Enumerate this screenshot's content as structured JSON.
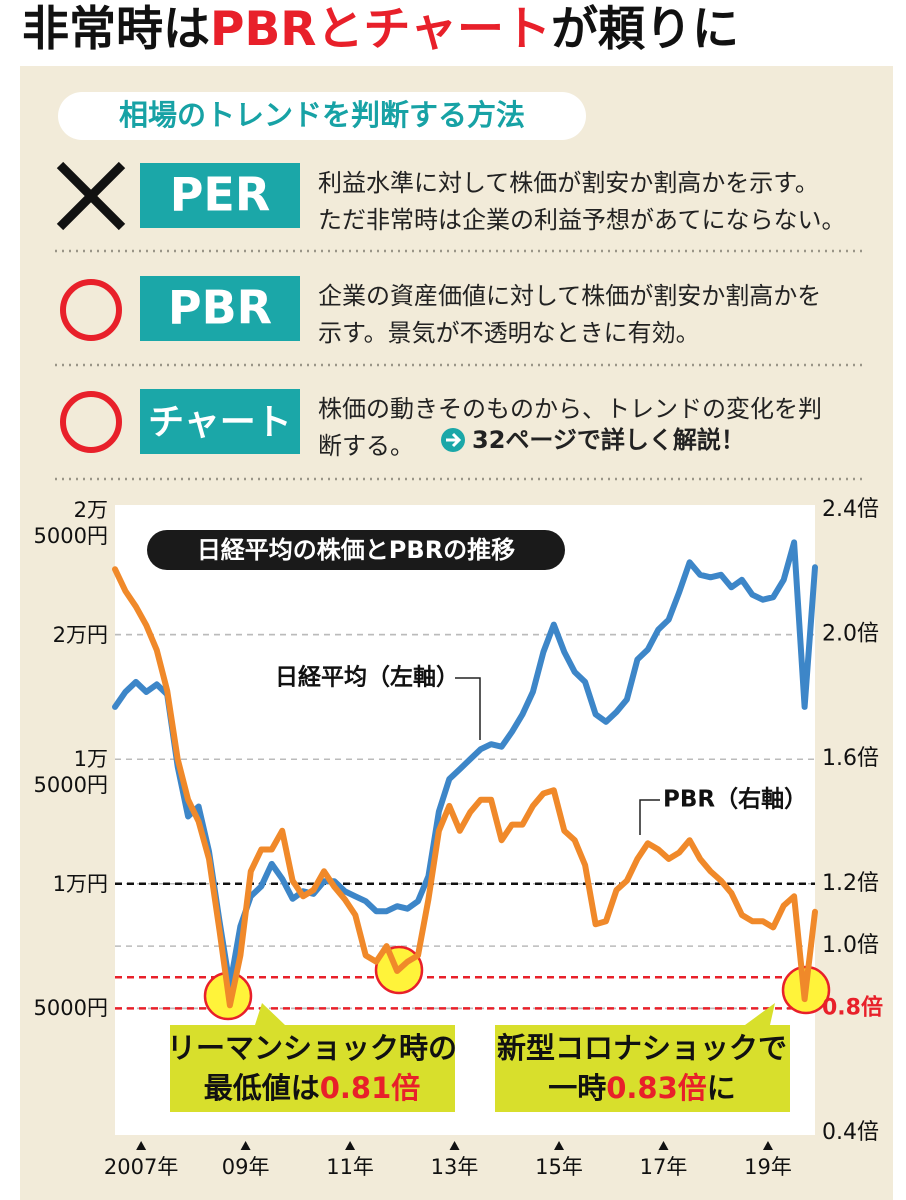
{
  "title": {
    "parts": [
      {
        "text": "非常時は",
        "color": "#111111"
      },
      {
        "text": "PBRとチャート",
        "color": "#e8202a"
      },
      {
        "text": "が頼りに",
        "color": "#111111"
      }
    ]
  },
  "methods": {
    "heading": "相場のトレンドを判断する方法",
    "items": [
      {
        "label": "PER",
        "lines": [
          "利益水準に対して株価が割安か割高かを示す。",
          "ただ非常時は企業の利益予想があてにならない。"
        ]
      },
      {
        "label": "PBR",
        "lines": [
          "企業の資産価値に対して株価が割安か割高かを",
          "示す。景気が不透明なときに有効。"
        ]
      },
      {
        "label": "チャート",
        "lines": [
          "株価の動きそのものから、トレンドの変化を判",
          "断する。"
        ],
        "link": "32ページで詳しく解説！"
      }
    ]
  },
  "chart_data": {
    "type": "line",
    "title": "日経平均の株価とPBRの推移",
    "x": [
      2006.5,
      2006.7,
      2006.9,
      2007.1,
      2007.3,
      2007.5,
      2007.7,
      2007.9,
      2008.1,
      2008.3,
      2008.5,
      2008.7,
      2008.9,
      2009.1,
      2009.3,
      2009.5,
      2009.7,
      2009.9,
      2010.1,
      2010.3,
      2010.5,
      2010.7,
      2010.9,
      2011.1,
      2011.3,
      2011.5,
      2011.7,
      2011.9,
      2012.1,
      2012.3,
      2012.5,
      2012.7,
      2012.9,
      2013.1,
      2013.3,
      2013.5,
      2013.7,
      2013.9,
      2014.1,
      2014.3,
      2014.5,
      2014.7,
      2014.9,
      2015.1,
      2015.3,
      2015.5,
      2015.7,
      2015.9,
      2016.1,
      2016.3,
      2016.5,
      2016.7,
      2016.9,
      2017.1,
      2017.3,
      2017.5,
      2017.7,
      2017.9,
      2018.1,
      2018.3,
      2018.5,
      2018.7,
      2018.9,
      2019.1,
      2019.3,
      2019.5,
      2019.7,
      2019.9
    ],
    "series": [
      {
        "name": "日経平均（左軸）",
        "color": "#3d86c8",
        "values": [
          17100,
          17700,
          18100,
          17700,
          18000,
          17600,
          14700,
          12700,
          13100,
          11300,
          8500,
          5900,
          8300,
          9500,
          9900,
          10800,
          10200,
          9400,
          9700,
          9600,
          10100,
          10100,
          9700,
          9500,
          9300,
          8900,
          8900,
          9100,
          9000,
          9300,
          10300,
          12900,
          14200,
          14600,
          15000,
          15400,
          15600,
          15500,
          16100,
          16800,
          17700,
          19300,
          20400,
          19300,
          18500,
          18100,
          16800,
          16500,
          16900,
          17400,
          19000,
          19400,
          20200,
          20600,
          21700,
          22900,
          22400,
          22300,
          22400,
          21900,
          22200,
          21600,
          21400,
          21500,
          22200,
          23700,
          17100,
          22700
        ]
      },
      {
        "name": "PBR（右軸）",
        "color": "#f0892a",
        "axis": "y2",
        "values": [
          2.21,
          2.14,
          2.09,
          2.03,
          1.95,
          1.82,
          1.6,
          1.47,
          1.4,
          1.28,
          1.05,
          0.81,
          0.97,
          1.24,
          1.31,
          1.31,
          1.37,
          1.21,
          1.16,
          1.18,
          1.24,
          1.19,
          1.15,
          1.1,
          0.97,
          0.95,
          1.0,
          0.92,
          0.95,
          0.97,
          1.15,
          1.37,
          1.45,
          1.37,
          1.43,
          1.47,
          1.47,
          1.34,
          1.39,
          1.39,
          1.45,
          1.49,
          1.5,
          1.37,
          1.34,
          1.26,
          1.07,
          1.08,
          1.18,
          1.21,
          1.28,
          1.33,
          1.31,
          1.28,
          1.3,
          1.34,
          1.28,
          1.24,
          1.21,
          1.17,
          1.1,
          1.08,
          1.08,
          1.06,
          1.13,
          1.16,
          0.83,
          1.11
        ]
      }
    ],
    "xlim": [
      2006.5,
      2019.9
    ],
    "xticks": [
      {
        "value": 2007,
        "label": "2007年"
      },
      {
        "value": 2009,
        "label": "09年"
      },
      {
        "value": 2011,
        "label": "11年"
      },
      {
        "value": 2013,
        "label": "13年"
      },
      {
        "value": 2015,
        "label": "15年"
      },
      {
        "value": 2017,
        "label": "17年"
      },
      {
        "value": 2019,
        "label": "19年"
      }
    ],
    "ylim": [
      0,
      25000
    ],
    "yticks": [
      {
        "value": 5000,
        "label": "5000円"
      },
      {
        "value": 10000,
        "label": "1万円"
      },
      {
        "value": 15000,
        "label": "1万\n5000円"
      },
      {
        "value": 20000,
        "label": "2万円"
      },
      {
        "value": 25000,
        "label": "2万\n5000円"
      }
    ],
    "y2lim": [
      0.4,
      2.4
    ],
    "y2ticks": [
      {
        "value": 0.4,
        "label": "0.4倍"
      },
      {
        "value": 0.8,
        "label": "0.8倍",
        "color": "#e8202a"
      },
      {
        "value": 1.0,
        "label": "1.0倍"
      },
      {
        "value": 1.2,
        "label": "1.2倍"
      },
      {
        "value": 1.6,
        "label": "1.6倍"
      },
      {
        "value": 2.0,
        "label": "2.0倍"
      },
      {
        "value": 2.4,
        "label": "2.4倍"
      }
    ],
    "grid": true,
    "reference_lines": [
      {
        "value": 1.2,
        "axis": "y2",
        "color": "#111111"
      },
      {
        "value": 0.9,
        "axis": "y2",
        "color": "#e8202a"
      },
      {
        "value": 0.8,
        "axis": "y2",
        "color": "#e8202a"
      }
    ],
    "annotations": [
      {
        "lines": [
          [
            {
              "text": "リーマンショック時の"
            }
          ],
          [
            {
              "text": "最低値は"
            },
            {
              "text": "0.81倍",
              "color": "#e8202a"
            }
          ]
        ]
      },
      {
        "lines": [
          [
            {
              "text": "新型コロナショックで"
            }
          ],
          [
            {
              "text": "一時"
            },
            {
              "text": "0.83倍",
              "color": "#e8202a"
            },
            {
              "text": "に"
            }
          ]
        ]
      }
    ]
  }
}
